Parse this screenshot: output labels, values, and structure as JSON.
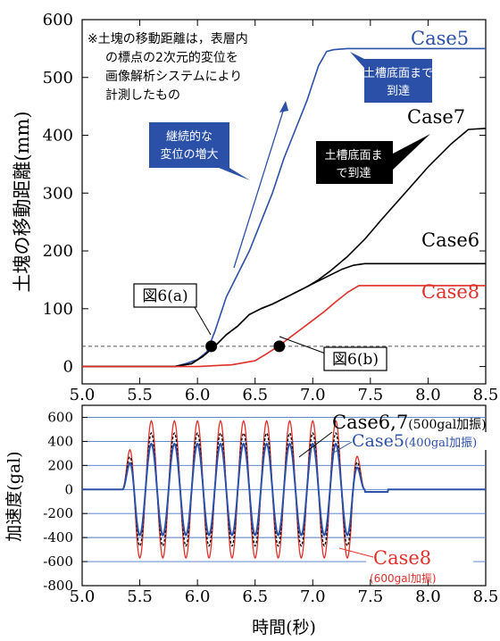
{
  "chart_data": [
    {
      "type": "line",
      "ylabel": "土塊の移動距離(mm)",
      "xlim": [
        5.0,
        8.5
      ],
      "ylim": [
        -30,
        600
      ],
      "x_ticks": [
        "5.0",
        "5.5",
        "6.0",
        "6.5",
        "7.0",
        "7.5",
        "8.0",
        "8.5"
      ],
      "y_ticks": [
        "0",
        "100",
        "200",
        "300",
        "400",
        "500",
        "600"
      ],
      "reference_line_y": 35,
      "series": [
        {
          "name": "Case5",
          "color": "#2b50a8",
          "x": [
            5.0,
            5.8,
            5.9,
            6.0,
            6.08,
            6.15,
            6.25,
            6.35,
            6.45,
            6.55,
            6.65,
            6.75,
            6.85,
            6.95,
            7.05,
            7.12,
            7.18,
            7.3,
            8.5
          ],
          "y": [
            0,
            0,
            5,
            12,
            25,
            60,
            120,
            160,
            200,
            250,
            300,
            360,
            410,
            460,
            520,
            545,
            548,
            550,
            550
          ]
        },
        {
          "name": "Case6",
          "color": "#000000",
          "x": [
            5.0,
            5.8,
            5.95,
            6.05,
            6.15,
            6.25,
            6.35,
            6.45,
            6.55,
            6.65,
            6.75,
            6.85,
            6.95,
            7.05,
            7.15,
            7.25,
            7.35,
            7.45,
            8.5
          ],
          "y": [
            0,
            0,
            5,
            18,
            35,
            55,
            70,
            90,
            100,
            108,
            118,
            128,
            138,
            148,
            158,
            168,
            175,
            178,
            178
          ]
        },
        {
          "name": "Case7",
          "color": "#000000",
          "x": [
            5.0,
            5.8,
            5.95,
            6.05,
            6.15,
            6.25,
            6.35,
            6.45,
            6.55,
            6.65,
            6.75,
            6.85,
            6.95,
            7.05,
            7.15,
            7.3,
            7.45,
            7.6,
            7.8,
            8.0,
            8.2,
            8.35,
            8.5
          ],
          "y": [
            0,
            0,
            5,
            18,
            35,
            55,
            70,
            90,
            100,
            108,
            118,
            128,
            138,
            150,
            165,
            190,
            220,
            255,
            300,
            345,
            385,
            410,
            412
          ]
        },
        {
          "name": "Case8",
          "color": "#e0302a",
          "x": [
            5.0,
            6.0,
            6.3,
            6.5,
            6.6,
            6.7,
            6.8,
            6.9,
            7.0,
            7.1,
            7.2,
            7.3,
            7.4,
            8.5
          ],
          "y": [
            0,
            0,
            3,
            10,
            22,
            35,
            50,
            65,
            80,
            95,
            112,
            128,
            140,
            140
          ]
        }
      ],
      "annotations": {
        "note": "※土塊の移動距離は，表層内の標点の2次元的変位を画像解析システムにより計測したもの",
        "callout_blue_left": "継続的な変位の増大",
        "callout_blue_right": "土槽底面まで到達",
        "callout_black": "土槽底面まで到達",
        "fig_a": "図6(a)",
        "fig_b": "図6(b)",
        "label_case5": "Case5",
        "label_case6": "Case6",
        "label_case7": "Case7",
        "label_case8": "Case8"
      },
      "markers": [
        {
          "x": 6.12,
          "y": 35,
          "label": "図6(a)"
        },
        {
          "x": 6.71,
          "y": 35,
          "label": "図6(b)"
        }
      ]
    },
    {
      "type": "line",
      "xlabel": "時間(秒)",
      "ylabel": "加速度(gal)",
      "xlim": [
        5.0,
        8.5
      ],
      "ylim": [
        -800,
        700
      ],
      "x_ticks": [
        "5.0",
        "5.5",
        "6.0",
        "6.5",
        "7.0",
        "7.5",
        "8.0",
        "8.5"
      ],
      "y_ticks": [
        "600",
        "400",
        "200",
        "0",
        "-200",
        "-400",
        "-600",
        "-800"
      ],
      "grid_horizontal": [
        600,
        400,
        200,
        0,
        -200,
        -400,
        -600
      ],
      "series": [
        {
          "name": "Case5(400gal加振)",
          "color": "#2b50a8",
          "amplitude": 380,
          "start": 5.35,
          "end": 7.45,
          "frequency_hz": 5
        },
        {
          "name": "Case6,7(500gal加振)",
          "color": "#000000",
          "amplitude": 470,
          "start": 5.35,
          "end": 7.45,
          "frequency_hz": 5
        },
        {
          "name": "Case8(600gal加振)",
          "color": "#e0302a",
          "amplitude": 570,
          "start": 5.35,
          "end": 7.45,
          "frequency_hz": 5
        }
      ],
      "labels": {
        "case67_main": "Case6,7",
        "case67_sub": "(500gal加振)",
        "case5_main": "Case5",
        "case5_sub": "(400gal加振)",
        "case8_main": "Case8",
        "case8_sub": "(600gal加振)"
      }
    }
  ]
}
